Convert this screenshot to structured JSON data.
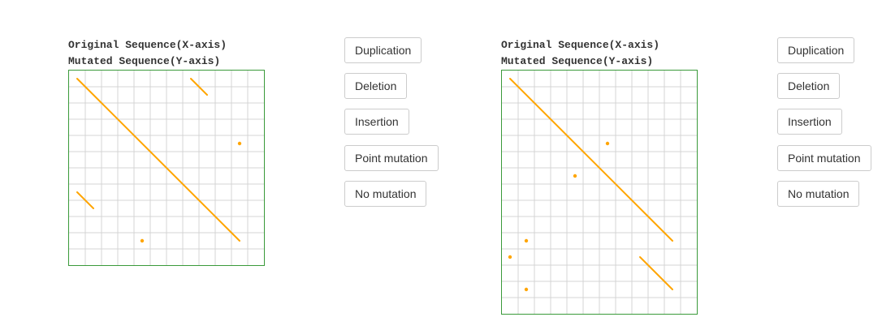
{
  "colors": {
    "frame": "#3a9a3a",
    "grid": "#d4d4d4",
    "mark": "#ffa500"
  },
  "panels": [
    {
      "title_x": "Original Sequence(X-axis)",
      "title_y": "Mutated Sequence(Y-axis)",
      "grid": {
        "cols": 12,
        "rows": 12
      },
      "segments": [
        [
          0.5,
          0.5,
          10.5,
          10.5
        ],
        [
          7.5,
          0.5,
          8.5,
          1.5
        ],
        [
          0.5,
          7.5,
          1.5,
          8.5
        ]
      ],
      "dots": [
        [
          10.5,
          4.5
        ],
        [
          4.5,
          10.5
        ]
      ],
      "buttons": [
        "Duplication",
        "Deletion",
        "Insertion",
        "Point mutation",
        "No mutation"
      ]
    },
    {
      "title_x": "Original Sequence(X-axis)",
      "title_y": "Mutated Sequence(Y-axis)",
      "grid": {
        "cols": 12,
        "rows": 15
      },
      "segments": [
        [
          0.5,
          0.5,
          10.5,
          10.5
        ],
        [
          8.5,
          11.5,
          10.5,
          13.5
        ]
      ],
      "dots": [
        [
          6.5,
          4.5
        ],
        [
          4.5,
          6.5
        ],
        [
          1.5,
          10.5
        ],
        [
          0.5,
          11.5
        ],
        [
          1.5,
          13.5
        ]
      ],
      "buttons": [
        "Duplication",
        "Deletion",
        "Insertion",
        "Point mutation",
        "No mutation"
      ]
    }
  ]
}
